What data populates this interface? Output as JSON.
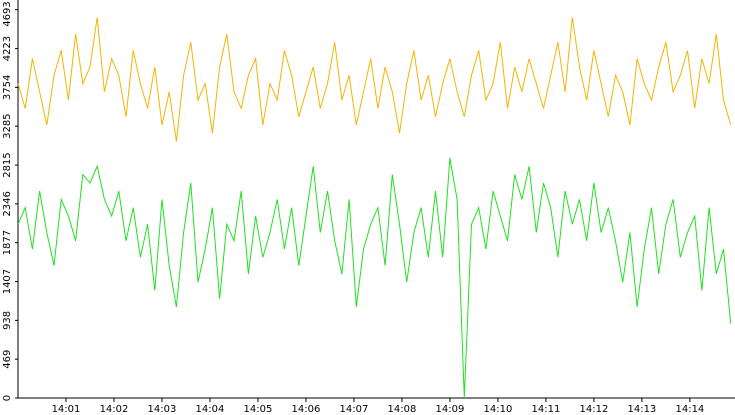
{
  "chart_data": {
    "type": "line",
    "x": [
      0,
      0.15,
      0.3,
      0.45,
      0.6,
      0.75,
      0.9,
      1.05,
      1.2,
      1.35,
      1.5,
      1.65,
      1.8,
      1.95,
      2.1,
      2.25,
      2.4,
      2.55,
      2.7,
      2.85,
      3,
      3.15,
      3.3,
      3.45,
      3.6,
      3.75,
      3.9,
      4.05,
      4.2,
      4.35,
      4.5,
      4.65,
      4.8,
      4.95,
      5.1,
      5.25,
      5.4,
      5.55,
      5.7,
      5.85,
      6,
      6.15,
      6.3,
      6.45,
      6.6,
      6.75,
      6.9,
      7.05,
      7.2,
      7.35,
      7.5,
      7.65,
      7.8,
      7.95,
      8.1,
      8.25,
      8.4,
      8.55,
      8.7,
      8.85,
      9,
      9.15,
      9.3,
      9.45,
      9.6,
      9.75,
      9.9,
      10.05,
      10.2,
      10.35,
      10.5,
      10.65,
      10.8,
      10.95,
      11.1,
      11.25,
      11.4,
      11.55,
      11.7,
      11.85,
      12,
      12.15,
      12.3,
      12.45,
      12.6,
      12.75,
      12.9,
      13.05,
      13.2,
      13.35,
      13.5,
      13.65,
      13.8,
      13.95,
      14.1,
      14.25,
      14.4,
      14.55,
      14.7,
      14.85
    ],
    "series": [
      {
        "color": "#f5b400",
        "values": [
          3800,
          3500,
          4100,
          3700,
          3300,
          3900,
          4200,
          3600,
          4400,
          3800,
          4000,
          4600,
          3700,
          4100,
          3900,
          3400,
          4200,
          3800,
          3500,
          4000,
          3300,
          3700,
          3100,
          3900,
          4300,
          3600,
          3800,
          3200,
          4000,
          4400,
          3700,
          3500,
          3900,
          4100,
          3300,
          3800,
          3600,
          4200,
          3900,
          3400,
          3700,
          4000,
          3500,
          3800,
          4300,
          3600,
          3900,
          3300,
          3700,
          4100,
          3500,
          4000,
          3700,
          3200,
          3800,
          4200,
          3600,
          3900,
          3400,
          3800,
          4100,
          3700,
          3400,
          3900,
          4200,
          3600,
          3800,
          4300,
          3500,
          4000,
          3700,
          4100,
          3800,
          3500,
          3900,
          4300,
          3700,
          4600,
          4000,
          3600,
          4200,
          3800,
          3400,
          3900,
          3700,
          3300,
          4100,
          3800,
          3600,
          4000,
          4300,
          3700,
          3900,
          4200,
          3500,
          4100,
          3800,
          4400,
          3600,
          3300
        ]
      },
      {
        "color": "#22e022",
        "values": [
          2100,
          2300,
          1800,
          2500,
          2000,
          1600,
          2400,
          2200,
          1900,
          2700,
          2600,
          2800,
          2400,
          2200,
          2500,
          1900,
          2300,
          1700,
          2100,
          1300,
          2400,
          1600,
          1100,
          2000,
          2600,
          1400,
          1800,
          2300,
          1200,
          2100,
          1900,
          2500,
          1500,
          2200,
          1700,
          2000,
          2400,
          1800,
          2300,
          1600,
          2200,
          2800,
          2000,
          2500,
          1900,
          1500,
          2400,
          1100,
          1800,
          2100,
          2300,
          1600,
          2700,
          2100,
          1400,
          2000,
          2300,
          1700,
          2500,
          1700,
          2900,
          2400,
          0,
          2100,
          2300,
          1800,
          2500,
          2200,
          1900,
          2700,
          2400,
          2800,
          2000,
          2600,
          2300,
          1700,
          2500,
          2100,
          2400,
          1900,
          2600,
          2000,
          2300,
          1900,
          1400,
          2000,
          1100,
          1800,
          2300,
          1500,
          2100,
          2400,
          1700,
          2000,
          2200,
          1300,
          2300,
          1500,
          1800,
          900
        ]
      }
    ],
    "xlim": [
      0,
      14.94
    ],
    "xticks": [
      {
        "value": 1,
        "label": "14:01"
      },
      {
        "value": 2,
        "label": "14:02"
      },
      {
        "value": 3,
        "label": "14:03"
      },
      {
        "value": 4,
        "label": "14:04"
      },
      {
        "value": 5,
        "label": "14:05"
      },
      {
        "value": 6,
        "label": "14:06"
      },
      {
        "value": 7,
        "label": "14:07"
      },
      {
        "value": 8,
        "label": "14:08"
      },
      {
        "value": 9,
        "label": "14:09"
      },
      {
        "value": 10,
        "label": "14:10"
      },
      {
        "value": 11,
        "label": "14:11"
      },
      {
        "value": 12,
        "label": "14:12"
      },
      {
        "value": 13,
        "label": "14:13"
      },
      {
        "value": 14,
        "label": "14:14"
      }
    ],
    "ylim": [
      0,
      4810
    ],
    "yticks": [
      0,
      469,
      938,
      1407,
      1877,
      2346,
      2815,
      3285,
      3754,
      4223,
      4693
    ]
  }
}
